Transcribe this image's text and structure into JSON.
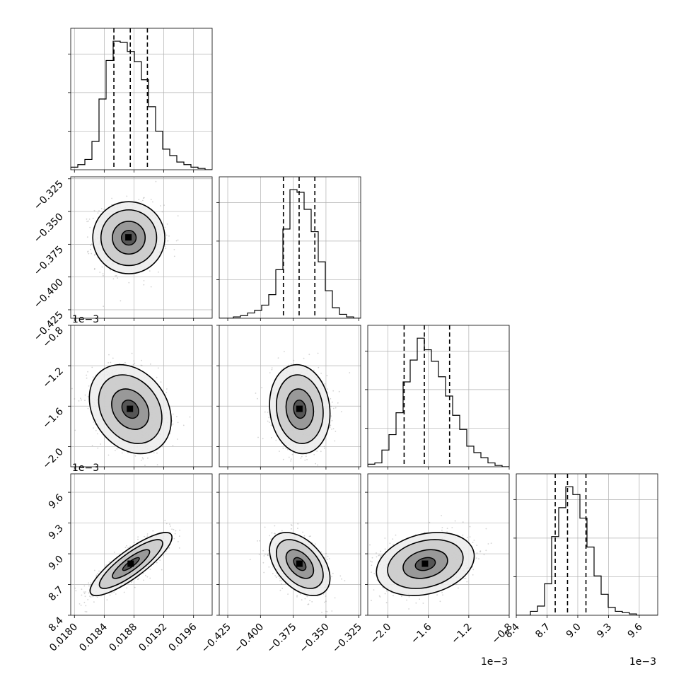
{
  "chart_data": {
    "type": "corner",
    "params": [
      {
        "range": [
          0.01795,
          0.01985
        ],
        "ticks": [
          0.018,
          0.0184,
          0.0188,
          0.0192,
          0.0196
        ],
        "tick_labels": [
          "0.0180",
          "0.0184",
          "0.0188",
          "0.0192",
          "0.0196"
        ],
        "quantiles": [
          0.01853,
          0.01875,
          0.01898
        ],
        "offset_text": ""
      },
      {
        "range": [
          -0.4315,
          -0.3235
        ],
        "ticks": [
          -0.425,
          -0.4,
          -0.375,
          -0.35,
          -0.325
        ],
        "tick_labels": [
          "−0.425",
          "−0.400",
          "−0.375",
          "−0.350",
          "−0.325"
        ],
        "quantiles": [
          -0.3825,
          -0.3705,
          -0.3585
        ],
        "offset_text": ""
      },
      {
        "range": [
          -2.2,
          -0.8
        ],
        "ticks": [
          -2.0,
          -1.6,
          -1.2,
          -0.8
        ],
        "tick_labels": [
          "−2.0",
          "−1.6",
          "−1.2",
          "−0.8"
        ],
        "quantiles": [
          -1.84,
          -1.64,
          -1.39
        ],
        "offset_text": "1e−3"
      },
      {
        "range": [
          8.4,
          9.78
        ],
        "ticks": [
          8.4,
          8.7,
          9.0,
          9.3,
          9.6
        ],
        "tick_labels": [
          "8.4",
          "8.7",
          "9.0",
          "9.3",
          "9.6"
        ],
        "quantiles": [
          8.78,
          8.9,
          9.08
        ],
        "offset_text": "1e−3"
      }
    ],
    "histograms": [
      {
        "param": 0,
        "bin_edges_range": [
          0.01795,
          0.01985
        ],
        "counts": [
          2,
          4,
          8,
          22,
          55,
          85,
          100,
          99,
          92,
          84,
          70,
          49,
          30,
          16,
          11,
          6,
          4,
          2,
          1,
          0
        ]
      },
      {
        "param": 1,
        "bin_edges_range": [
          -0.4315,
          -0.3235
        ],
        "counts": [
          0,
          0,
          1,
          2,
          4,
          6,
          10,
          18,
          37,
          68,
          98,
          96,
          83,
          66,
          43,
          21,
          8,
          3,
          1,
          0
        ]
      },
      {
        "param": 2,
        "bin_edges_range": [
          -2.2,
          -0.8
        ],
        "counts": [
          2,
          3,
          13,
          25,
          42,
          66,
          83,
          100,
          91,
          82,
          70,
          55,
          40,
          29,
          16,
          11,
          7,
          3,
          1,
          0
        ]
      },
      {
        "param": 3,
        "bin_edges_range": [
          8.4,
          9.78
        ],
        "counts": [
          0,
          0,
          3,
          7,
          24,
          60,
          82,
          98,
          92,
          74,
          52,
          30,
          16,
          6,
          3,
          2,
          1,
          0,
          0,
          0
        ]
      }
    ],
    "pairs": [
      {
        "x_param": 0,
        "y_param": 1,
        "center": [
          0.01873,
          -0.37
        ],
        "std": [
          0.00022,
          0.0125
        ],
        "corr": 0.0
      },
      {
        "x_param": 0,
        "y_param": 2,
        "center": [
          0.01875,
          -1.63
        ],
        "std": [
          0.00025,
          0.2
        ],
        "corr": -0.25
      },
      {
        "x_param": 1,
        "y_param": 2,
        "center": [
          -0.37,
          -1.63
        ],
        "std": [
          0.0105,
          0.2
        ],
        "corr": -0.1
      },
      {
        "x_param": 0,
        "y_param": 3,
        "center": [
          0.01876,
          8.9
        ],
        "std": [
          0.00025,
          0.14
        ],
        "corr": 0.85
      },
      {
        "x_param": 1,
        "y_param": 3,
        "center": [
          -0.37,
          8.9
        ],
        "std": [
          0.0105,
          0.14
        ],
        "corr": -0.45
      },
      {
        "x_param": 2,
        "y_param": 3,
        "center": [
          -1.63,
          8.9
        ],
        "std": [
          0.22,
          0.14
        ],
        "corr": 0.25
      }
    ],
    "grid": true,
    "colors": {
      "line": "#000000",
      "grid": "#b0b0b0",
      "points": "#808080"
    }
  }
}
